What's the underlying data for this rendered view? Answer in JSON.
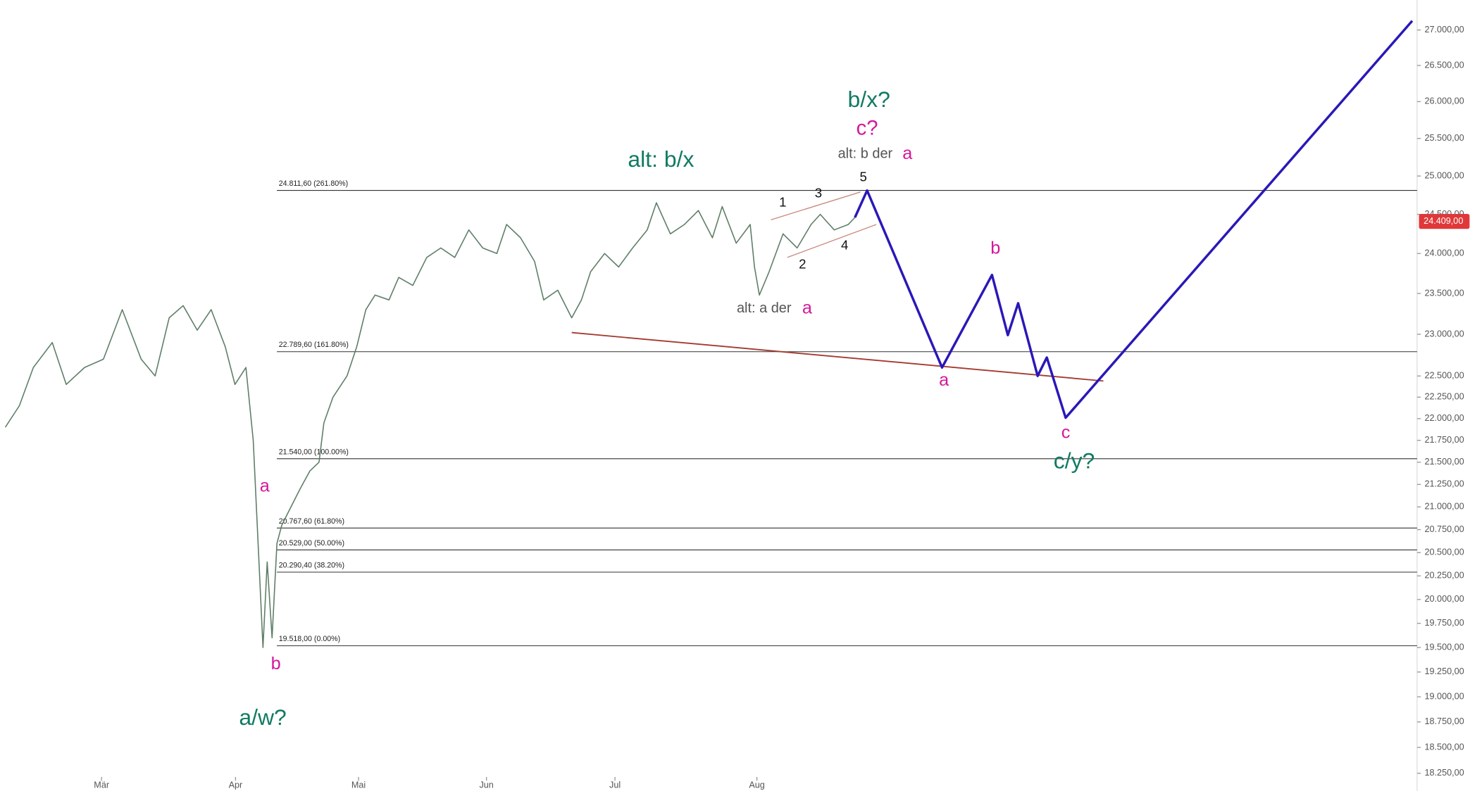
{
  "chart_data": {
    "type": "line",
    "log_scale": true,
    "xlim": [
      0,
      232.6
    ],
    "ylim": [
      18080,
      27430
    ],
    "xticks": [
      {
        "value": 16.6,
        "label": "Mär"
      },
      {
        "value": 38.6,
        "label": "Apr"
      },
      {
        "value": 58.8,
        "label": "Mai"
      },
      {
        "value": 79.8,
        "label": "Jun"
      },
      {
        "value": 100.9,
        "label": "Jul"
      },
      {
        "value": 124.2,
        "label": "Aug"
      }
    ],
    "yticks": [
      {
        "value": 27000,
        "label": "27.000,00"
      },
      {
        "value": 26500,
        "label": "26.500,00"
      },
      {
        "value": 26000,
        "label": "26.000,00"
      },
      {
        "value": 25500,
        "label": "25.500,00"
      },
      {
        "value": 25000,
        "label": "25.000,00"
      },
      {
        "value": 24500,
        "label": "24.500,00"
      },
      {
        "value": 24000,
        "label": "24.000,00"
      },
      {
        "value": 23500,
        "label": "23.500,00"
      },
      {
        "value": 23000,
        "label": "23.000,00"
      },
      {
        "value": 22500,
        "label": "22.500,00"
      },
      {
        "value": 22250,
        "label": "22.250,00"
      },
      {
        "value": 22000,
        "label": "22.000,00"
      },
      {
        "value": 21750,
        "label": "21.750,00"
      },
      {
        "value": 21500,
        "label": "21.500,00"
      },
      {
        "value": 21250,
        "label": "21.250,00"
      },
      {
        "value": 21000,
        "label": "21.000,00"
      },
      {
        "value": 20750,
        "label": "20.750,00"
      },
      {
        "value": 20500,
        "label": "20.500,00"
      },
      {
        "value": 20250,
        "label": "20.250,00"
      },
      {
        "value": 20000,
        "label": "20.000,00"
      },
      {
        "value": 19750,
        "label": "19.750,00"
      },
      {
        "value": 19500,
        "label": "19.500,00"
      },
      {
        "value": 19250,
        "label": "19.250,00"
      },
      {
        "value": 19000,
        "label": "19.000,00"
      },
      {
        "value": 18750,
        "label": "18.750,00"
      },
      {
        "value": 18500,
        "label": "18.500,00"
      },
      {
        "value": 18250,
        "label": "18.250,00"
      }
    ],
    "series": [
      {
        "color": "#5f7f68",
        "x": [
          0.8,
          3.1,
          5.4,
          8.5,
          10.8,
          13.8,
          16.9,
          20,
          23.1,
          25.4,
          27.7,
          30,
          32.3,
          34.6,
          36.9,
          38.5,
          40.3,
          41.5,
          42.3,
          43.1,
          43.8,
          44.6,
          45.4,
          46.2,
          47.7,
          49.2,
          50.8,
          52.3,
          53.1,
          54.6,
          56.9,
          58.5,
          60,
          61.5,
          63.8,
          65.4,
          67.7,
          70,
          72.3,
          74.6,
          76.9,
          79.2,
          81.5,
          83.1,
          85.4,
          87.7,
          89.2,
          91.5,
          93.8,
          95.4,
          96.9,
          99.2,
          101.5,
          103.8,
          106.2,
          107.7,
          110,
          112.3,
          114.6,
          116.9,
          118.5,
          120.8,
          123.1,
          123.8,
          124.6,
          126.2,
          128.5,
          130.8,
          133.1,
          134.6,
          136.9,
          139.2,
          140.3
        ],
        "values": [
          21900,
          22150,
          22600,
          22900,
          22400,
          22600,
          22700,
          23300,
          22700,
          22500,
          23200,
          23350,
          23050,
          23300,
          22850,
          22400,
          22600,
          21750,
          20600,
          19500,
          20400,
          19600,
          20600,
          20800,
          21000,
          21200,
          21400,
          21500,
          21950,
          22250,
          22500,
          22850,
          23300,
          23480,
          23420,
          23700,
          23600,
          23950,
          24070,
          23950,
          24300,
          24070,
          24000,
          24370,
          24200,
          23900,
          23420,
          23540,
          23200,
          23420,
          23770,
          24000,
          23830,
          24070,
          24300,
          24650,
          24250,
          24370,
          24550,
          24200,
          24600,
          24130,
          24370,
          23830,
          23480,
          23770,
          24250,
          24070,
          24370,
          24500,
          24300,
          24370,
          24460
        ]
      },
      {
        "color": "#2a18b8",
        "x": [
          140.3,
          142.3,
          154.6,
          162.8,
          165.4,
          167.1,
          170.3,
          171.8,
          174.9,
          231.8
        ],
        "values": [
          24460,
          24810,
          22600,
          23730,
          22990,
          23380,
          22500,
          22720,
          22010,
          27130
        ]
      }
    ],
    "trendlines": [
      {
        "color": "#a33a30",
        "x": [
          93.8,
          181.1
        ],
        "values": [
          23020,
          22440
        ]
      },
      {
        "color": "#c98a80",
        "x": [
          126.5,
          141.2
        ],
        "values": [
          24430,
          24790
        ]
      },
      {
        "color": "#c98a80",
        "x": [
          129.2,
          143.8
        ],
        "values": [
          23950,
          24370
        ]
      }
    ],
    "levels": [
      {
        "value": 24811.6,
        "label": "24.811,60 (261.80%)"
      },
      {
        "value": 22789.6,
        "label": "22.789,60 (161.80%)"
      },
      {
        "value": 21540,
        "label": "21.540,00 (100.00%)"
      },
      {
        "value": 20767.6,
        "label": "20.767,60 (61.80%)"
      },
      {
        "value": 20529,
        "label": "20.529,00 (50.00%)"
      },
      {
        "value": 20290.4,
        "label": "20.290,40 (38.20%)"
      },
      {
        "value": 19518,
        "label": "19.518,00 (0.00%)"
      }
    ],
    "last_price": {
      "value": 24409,
      "label": "24.409,00",
      "color": "#e0383a"
    },
    "annotations": [
      {
        "text": "alt: b/x",
        "color": "#117a63"
      },
      {
        "text": "b/x?",
        "color": "#117a63"
      },
      {
        "text": "c?",
        "color": "#d4189a"
      },
      {
        "text": "alt: b der",
        "color": "#555555"
      },
      {
        "text": "a",
        "color": "#d4189a"
      },
      {
        "text": "5",
        "color": "#111111"
      },
      {
        "text": "1",
        "color": "#111111"
      },
      {
        "text": "3",
        "color": "#111111"
      },
      {
        "text": "2",
        "color": "#111111"
      },
      {
        "text": "4",
        "color": "#111111"
      },
      {
        "text": "alt: a der",
        "color": "#555555"
      },
      {
        "text": "a",
        "color": "#d4189a"
      },
      {
        "text": "b",
        "color": "#d4189a"
      },
      {
        "text": "a",
        "color": "#d4189a"
      },
      {
        "text": "c",
        "color": "#d4189a"
      },
      {
        "text": "c/y?",
        "color": "#117a63"
      },
      {
        "text": "a",
        "color": "#d4189a"
      },
      {
        "text": "b",
        "color": "#d4189a"
      },
      {
        "text": "a/w?",
        "color": "#117a63"
      }
    ]
  }
}
